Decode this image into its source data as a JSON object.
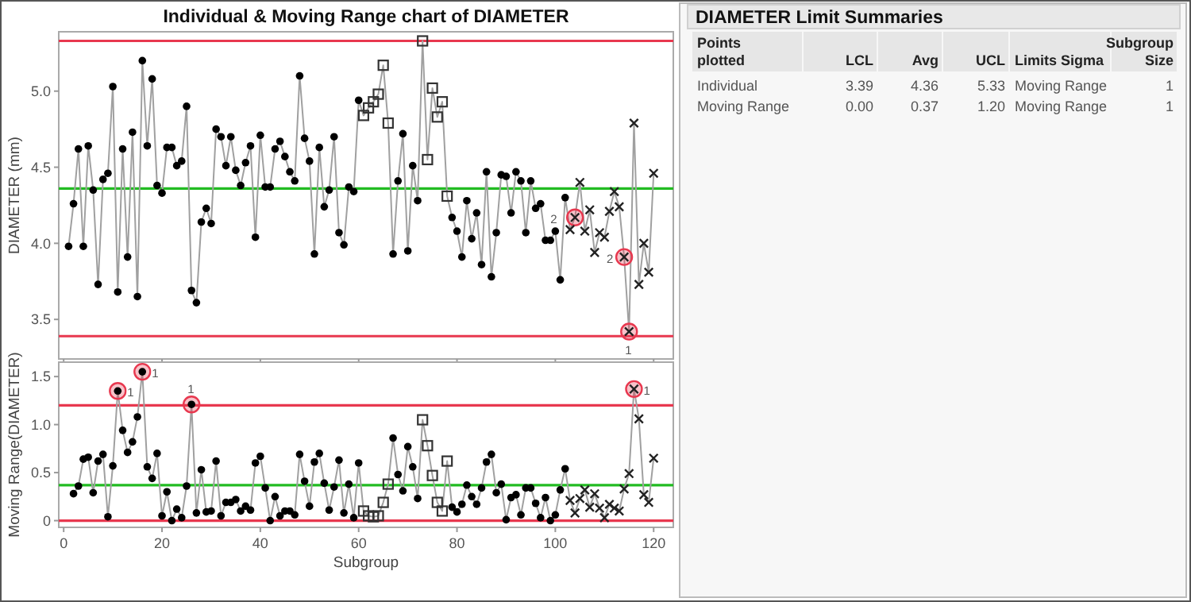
{
  "chart_data": [
    {
      "type": "line",
      "title": "Individual & Moving Range chart of DIAMETER",
      "ylabel": "DIAMETER (mm)",
      "xlim": [
        -1,
        124
      ],
      "xticks": [
        0,
        20,
        40,
        60,
        80,
        100,
        120
      ],
      "ylim": [
        3.24,
        5.39
      ],
      "yticks": [
        3.5,
        {
          "value": 4,
          "label": "4.0"
        },
        4.5,
        {
          "value": 5,
          "label": "5.0"
        }
      ],
      "tick_labels": "y",
      "x": [
        1,
        2,
        3,
        4,
        5,
        6,
        7,
        8,
        9,
        10,
        11,
        12,
        13,
        14,
        15,
        16,
        17,
        18,
        19,
        20,
        21,
        22,
        23,
        24,
        25,
        26,
        27,
        28,
        29,
        30,
        31,
        32,
        33,
        34,
        35,
        36,
        37,
        38,
        39,
        40,
        41,
        42,
        43,
        44,
        45,
        46,
        47,
        48,
        49,
        50,
        51,
        52,
        53,
        54,
        55,
        56,
        57,
        58,
        59,
        60,
        61,
        62,
        63,
        64,
        65,
        66,
        67,
        68,
        69,
        70,
        71,
        72,
        73,
        74,
        75,
        76,
        77,
        78,
        79,
        80,
        81,
        82,
        83,
        84,
        85,
        86,
        87,
        88,
        89,
        90,
        91,
        92,
        93,
        94,
        95,
        96,
        97,
        98,
        99,
        100,
        101,
        102,
        103,
        104,
        105,
        106,
        107,
        108,
        109,
        110,
        111,
        112,
        113,
        114,
        115,
        116,
        117,
        118,
        119,
        120
      ],
      "ref_lines": [
        {
          "axis": "y",
          "value": 5.33,
          "color": "#e8384f"
        },
        {
          "axis": "y",
          "value": 4.36,
          "color": "#22bb22"
        },
        {
          "axis": "y",
          "value": 3.39,
          "color": "#e8384f"
        }
      ],
      "annotations": [
        {
          "text": "2",
          "x": 104,
          "y": 4.17
        },
        {
          "text": "2",
          "x": 114,
          "y": 3.91
        },
        {
          "text": "1",
          "x": 115,
          "y": 3.42
        }
      ],
      "series": [
        {
          "type": "line",
          "marker": "none",
          "color": "#a0a0a0",
          "values": [
            3.98,
            4.26,
            4.62,
            3.98,
            4.64,
            4.35,
            3.73,
            4.42,
            4.46,
            5.03,
            3.68,
            4.62,
            3.91,
            4.73,
            3.65,
            5.2,
            4.64,
            5.08,
            4.38,
            4.33,
            4.63,
            4.63,
            4.51,
            4.54,
            4.9,
            3.69,
            3.61,
            4.14,
            4.23,
            4.13,
            4.75,
            4.7,
            4.51,
            4.7,
            4.48,
            4.38,
            4.53,
            4.64,
            4.04,
            4.71,
            4.37,
            4.37,
            4.62,
            4.67,
            4.57,
            4.47,
            4.41,
            5.1,
            4.69,
            4.54,
            3.93,
            4.63,
            4.24,
            4.35,
            4.7,
            4.07,
            3.99,
            4.37,
            4.34,
            4.94,
            4.84,
            4.89,
            4.93,
            4.98,
            5.17,
            4.79,
            3.93,
            4.41,
            4.72,
            3.95,
            4.51,
            4.28,
            5.33,
            4.55,
            5.02,
            4.83,
            4.93,
            4.31,
            4.17,
            4.08,
            3.91,
            4.28,
            4.03,
            4.2,
            3.86,
            4.47,
            3.78,
            4.07,
            4.45,
            4.44,
            4.2,
            4.47,
            4.41,
            4.07,
            4.41,
            4.23,
            4.26,
            4.02,
            4.02,
            4.08,
            3.76,
            4.3,
            4.09,
            4.17,
            4.4,
            4.08,
            4.22,
            3.94,
            4.07,
            4.04,
            4.21,
            4.34,
            4.24,
            3.91,
            3.42,
            4.79,
            3.73,
            4.0,
            3.81,
            4.46
          ]
        },
        {
          "type": "bubble",
          "color": "#e8384f",
          "x": [
            104,
            114,
            115
          ],
          "values": [
            4.17,
            3.91,
            3.42
          ],
          "sizes": [
            1,
            1,
            1
          ]
        },
        {
          "type": "scatter",
          "marker": "circle",
          "color": "#000000",
          "x": [
            1,
            2,
            3,
            4,
            5,
            6,
            7,
            8,
            9,
            10,
            11,
            12,
            13,
            14,
            15,
            16,
            17,
            18,
            19,
            20,
            21,
            22,
            23,
            24,
            25,
            26,
            27,
            28,
            29,
            30,
            31,
            32,
            33,
            34,
            35,
            36,
            37,
            38,
            39,
            40,
            41,
            42,
            43,
            44,
            45,
            46,
            47,
            48,
            49,
            50,
            51,
            52,
            53,
            54,
            55,
            56,
            57,
            58,
            59,
            60,
            67,
            68,
            69,
            70,
            71,
            72,
            79,
            80,
            81,
            82,
            83,
            84,
            85,
            86,
            87,
            88,
            89,
            90,
            91,
            92,
            93,
            94,
            95,
            96,
            97,
            98,
            99,
            100,
            101,
            102
          ],
          "values": [
            3.98,
            4.26,
            4.62,
            3.98,
            4.64,
            4.35,
            3.73,
            4.42,
            4.46,
            5.03,
            3.68,
            4.62,
            3.91,
            4.73,
            3.65,
            5.2,
            4.64,
            5.08,
            4.38,
            4.33,
            4.63,
            4.63,
            4.51,
            4.54,
            4.9,
            3.69,
            3.61,
            4.14,
            4.23,
            4.13,
            4.75,
            4.7,
            4.51,
            4.7,
            4.48,
            4.38,
            4.53,
            4.64,
            4.04,
            4.71,
            4.37,
            4.37,
            4.62,
            4.67,
            4.57,
            4.47,
            4.41,
            5.1,
            4.69,
            4.54,
            3.93,
            4.63,
            4.24,
            4.35,
            4.7,
            4.07,
            3.99,
            4.37,
            4.34,
            4.94,
            3.93,
            4.41,
            4.72,
            3.95,
            4.51,
            4.28,
            4.17,
            4.08,
            3.91,
            4.28,
            4.03,
            4.2,
            3.86,
            4.47,
            3.78,
            4.07,
            4.45,
            4.44,
            4.2,
            4.47,
            4.41,
            4.07,
            4.41,
            4.23,
            4.26,
            4.02,
            4.02,
            4.08,
            3.76,
            4.3
          ]
        },
        {
          "type": "scatter",
          "marker": "square",
          "color": "#333333",
          "x": [
            61,
            62,
            63,
            64,
            65,
            66,
            73,
            74,
            75,
            76,
            77,
            78
          ],
          "values": [
            4.84,
            4.89,
            4.93,
            4.98,
            5.17,
            4.79,
            5.33,
            4.55,
            5.02,
            4.83,
            4.93,
            4.31
          ]
        },
        {
          "type": "scatter",
          "marker": "cross",
          "color": "#222222",
          "x": [
            103,
            104,
            105,
            106,
            107,
            108,
            109,
            110,
            111,
            112,
            113,
            114,
            115,
            116,
            117,
            118,
            119,
            120
          ],
          "values": [
            4.09,
            4.17,
            4.4,
            4.08,
            4.22,
            3.94,
            4.07,
            4.04,
            4.21,
            4.34,
            4.24,
            3.91,
            3.42,
            4.79,
            3.73,
            4.0,
            3.81,
            4.46
          ]
        }
      ]
    },
    {
      "type": "line",
      "xlabel": "Subgroup",
      "ylabel": "Moving Range(DIAMETER)",
      "xlim": [
        -1,
        124
      ],
      "xticks": [
        0,
        20,
        40,
        60,
        80,
        100,
        120
      ],
      "ylim": [
        -0.07,
        1.65
      ],
      "yticks": [
        0,
        0.5,
        {
          "value": 1,
          "label": "1.0"
        },
        1.5
      ],
      "x": [
        2,
        3,
        4,
        5,
        6,
        7,
        8,
        9,
        10,
        11,
        12,
        13,
        14,
        15,
        16,
        17,
        18,
        19,
        20,
        21,
        22,
        23,
        24,
        25,
        26,
        27,
        28,
        29,
        30,
        31,
        32,
        33,
        34,
        35,
        36,
        37,
        38,
        39,
        40,
        41,
        42,
        43,
        44,
        45,
        46,
        47,
        48,
        49,
        50,
        51,
        52,
        53,
        54,
        55,
        56,
        57,
        58,
        59,
        60,
        61,
        62,
        63,
        64,
        65,
        66,
        67,
        68,
        69,
        70,
        71,
        72,
        73,
        74,
        75,
        76,
        77,
        78,
        79,
        80,
        81,
        82,
        83,
        84,
        85,
        86,
        87,
        88,
        89,
        90,
        91,
        92,
        93,
        94,
        95,
        96,
        97,
        98,
        99,
        100,
        101,
        102,
        103,
        104,
        105,
        106,
        107,
        108,
        109,
        110,
        111,
        112,
        113,
        114,
        115,
        116,
        117,
        118,
        119,
        120
      ],
      "ref_lines": [
        {
          "axis": "y",
          "value": 1.2,
          "color": "#e8384f"
        },
        {
          "axis": "y",
          "value": 0.37,
          "color": "#22bb22"
        },
        {
          "axis": "y",
          "value": 0,
          "color": "#e8384f"
        }
      ],
      "annotations": [
        {
          "text": "1",
          "x": 11,
          "y": 1.35
        },
        {
          "text": "1",
          "x": 16,
          "y": 1.55
        },
        {
          "text": "1",
          "x": 26,
          "y": 1.21
        },
        {
          "text": "1",
          "x": 116,
          "y": 1.37
        }
      ],
      "series": [
        {
          "type": "line",
          "marker": "none",
          "color": "#a0a0a0",
          "values": [
            0.28,
            0.36,
            0.64,
            0.66,
            0.29,
            0.62,
            0.69,
            0.04,
            0.57,
            1.35,
            0.94,
            0.71,
            0.82,
            1.08,
            1.55,
            0.56,
            0.44,
            0.7,
            0.05,
            0.3,
            0,
            0.12,
            0.03,
            0.36,
            1.21,
            0.08,
            0.53,
            0.09,
            0.1,
            0.62,
            0.05,
            0.19,
            0.19,
            0.22,
            0.1,
            0.15,
            0.11,
            0.6,
            0.67,
            0.34,
            0,
            0.25,
            0.05,
            0.1,
            0.1,
            0.06,
            0.69,
            0.41,
            0.15,
            0.61,
            0.7,
            0.39,
            0.11,
            0.35,
            0.63,
            0.08,
            0.38,
            0.03,
            0.6,
            0.1,
            0.05,
            0.04,
            0.05,
            0.19,
            0.38,
            0.86,
            0.48,
            0.31,
            0.77,
            0.56,
            0.23,
            1.05,
            0.78,
            0.47,
            0.19,
            0.1,
            0.62,
            0.14,
            0.09,
            0.17,
            0.37,
            0.25,
            0.17,
            0.34,
            0.61,
            0.69,
            0.29,
            0.38,
            0.01,
            0.24,
            0.27,
            0.06,
            0.34,
            0.34,
            0.18,
            0.03,
            0.24,
            0,
            0.06,
            0.32,
            0.54,
            0.21,
            0.08,
            0.23,
            0.32,
            0.14,
            0.28,
            0.13,
            0.03,
            0.17,
            0.13,
            0.1,
            0.33,
            0.49,
            1.37,
            1.06,
            0.27,
            0.19,
            0.65
          ]
        },
        {
          "type": "bubble",
          "color": "#e8384f",
          "x": [
            11,
            16,
            26,
            116
          ],
          "values": [
            1.35,
            1.55,
            1.21,
            1.37
          ],
          "sizes": [
            1,
            1,
            1,
            1
          ]
        },
        {
          "type": "scatter",
          "marker": "circle",
          "color": "#000000",
          "x": [
            2,
            3,
            4,
            5,
            6,
            7,
            8,
            9,
            10,
            11,
            12,
            13,
            14,
            15,
            16,
            17,
            18,
            19,
            20,
            21,
            22,
            23,
            24,
            25,
            26,
            27,
            28,
            29,
            30,
            31,
            32,
            33,
            34,
            35,
            36,
            37,
            38,
            39,
            40,
            41,
            42,
            43,
            44,
            45,
            46,
            47,
            48,
            49,
            50,
            51,
            52,
            53,
            54,
            55,
            56,
            57,
            58,
            59,
            60,
            67,
            68,
            69,
            70,
            71,
            72,
            79,
            80,
            81,
            82,
            83,
            84,
            85,
            86,
            87,
            88,
            89,
            90,
            91,
            92,
            93,
            94,
            95,
            96,
            97,
            98,
            99,
            100,
            101,
            102
          ],
          "values": [
            0.28,
            0.36,
            0.64,
            0.66,
            0.29,
            0.62,
            0.69,
            0.04,
            0.57,
            1.35,
            0.94,
            0.71,
            0.82,
            1.08,
            1.55,
            0.56,
            0.44,
            0.7,
            0.05,
            0.3,
            0,
            0.12,
            0.03,
            0.36,
            1.21,
            0.08,
            0.53,
            0.09,
            0.1,
            0.62,
            0.05,
            0.19,
            0.19,
            0.22,
            0.1,
            0.15,
            0.11,
            0.6,
            0.67,
            0.34,
            0,
            0.25,
            0.05,
            0.1,
            0.1,
            0.06,
            0.69,
            0.41,
            0.15,
            0.61,
            0.7,
            0.39,
            0.11,
            0.35,
            0.63,
            0.08,
            0.38,
            0.03,
            0.6,
            0.86,
            0.48,
            0.31,
            0.77,
            0.56,
            0.23,
            0.14,
            0.09,
            0.17,
            0.37,
            0.25,
            0.17,
            0.34,
            0.61,
            0.69,
            0.29,
            0.38,
            0.01,
            0.24,
            0.27,
            0.06,
            0.34,
            0.34,
            0.18,
            0.03,
            0.24,
            0,
            0.06,
            0.32,
            0.54
          ]
        },
        {
          "type": "scatter",
          "marker": "square",
          "color": "#333333",
          "x": [
            61,
            62,
            63,
            64,
            65,
            66,
            73,
            74,
            75,
            76,
            77,
            78
          ],
          "values": [
            0.1,
            0.05,
            0.04,
            0.05,
            0.19,
            0.38,
            1.05,
            0.78,
            0.47,
            0.19,
            0.1,
            0.62
          ]
        },
        {
          "type": "scatter",
          "marker": "cross",
          "color": "#222222",
          "x": [
            103,
            104,
            105,
            106,
            107,
            108,
            109,
            110,
            111,
            112,
            113,
            114,
            115,
            116,
            117,
            118,
            119,
            120
          ],
          "values": [
            0.21,
            0.08,
            0.23,
            0.32,
            0.14,
            0.28,
            0.13,
            0.03,
            0.17,
            0.13,
            0.1,
            0.33,
            0.49,
            1.37,
            1.06,
            0.27,
            0.19,
            0.65
          ]
        }
      ]
    },
    {
      "type": "other",
      "title": "DIAMETER Limit Summaries",
      "categories": [
        "Points\nplotted",
        "LCL",
        "Avg",
        "UCL",
        "Limits Sigma",
        "Subgroup\nSize"
      ],
      "cell_labels": [
        [
          "Individual",
          "3.39",
          "4.36",
          "5.33",
          "Moving Range",
          "1"
        ],
        [
          "Moving Range",
          "0.00",
          "0.37",
          "1.20",
          "Moving Range",
          "1"
        ]
      ]
    }
  ]
}
